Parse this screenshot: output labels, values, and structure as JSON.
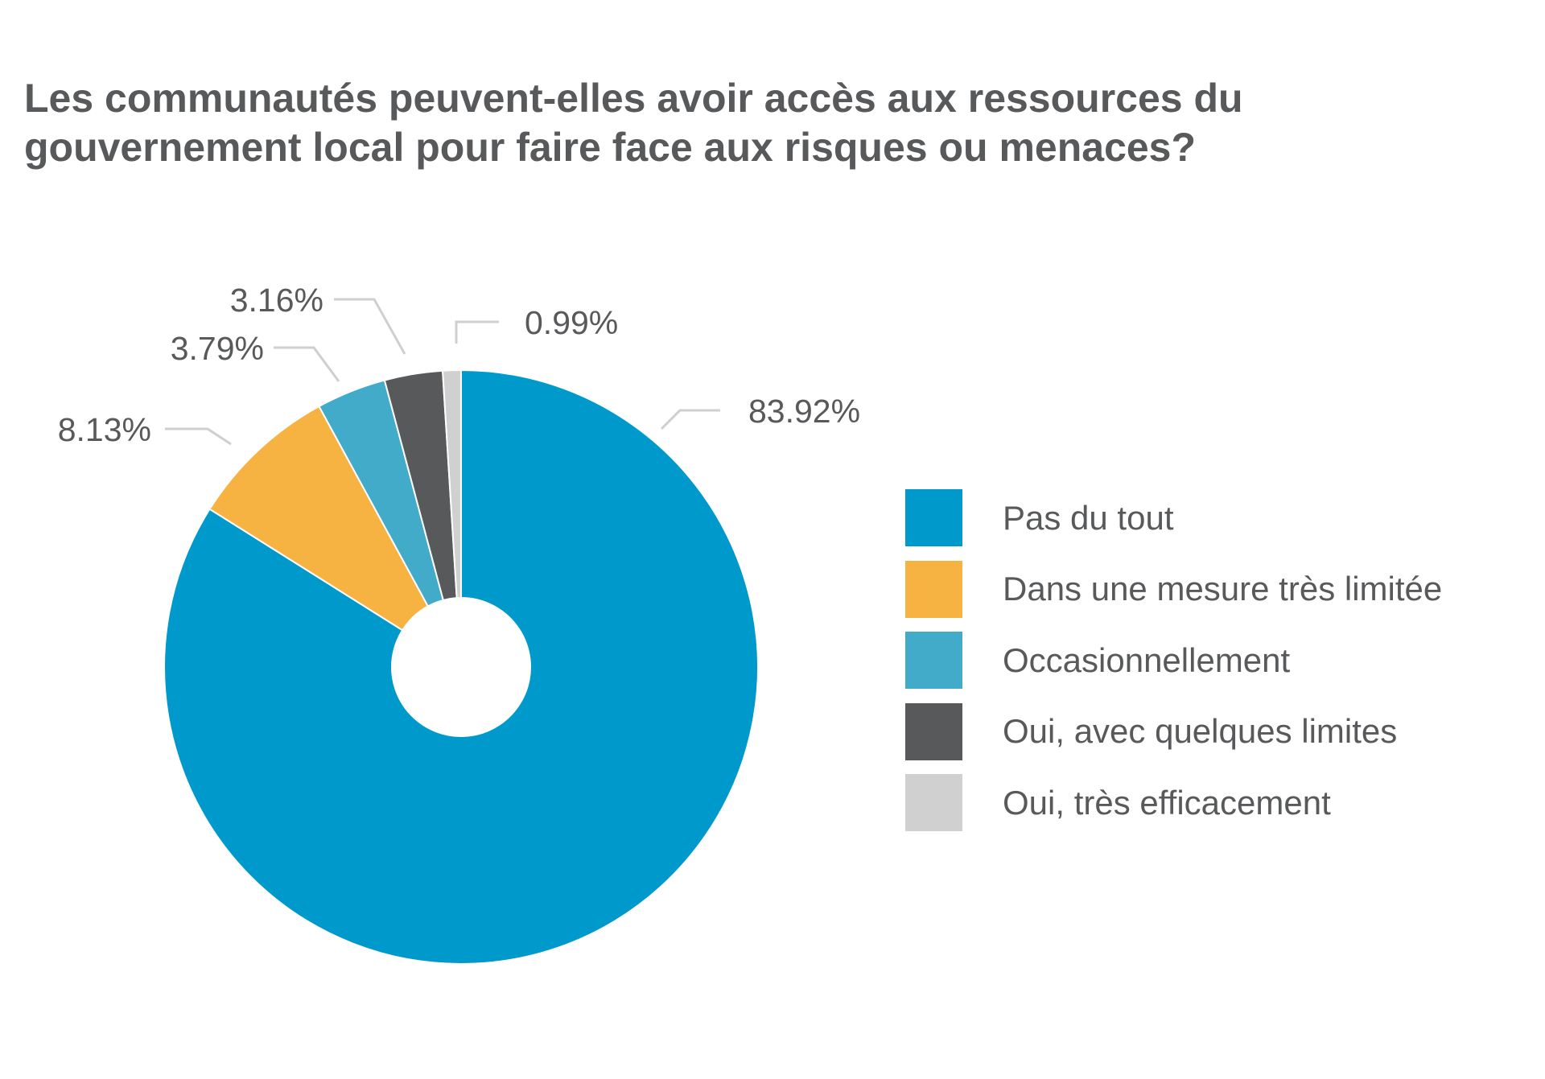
{
  "chart_data": {
    "type": "pie",
    "variant": "donut",
    "title_lines": [
      "Les communautés peuvent-elles avoir accès aux ressources du",
      "gouvernement local pour faire face aux risques ou menaces?"
    ],
    "categories": [
      "Pas du tout",
      "Dans une mesure très limitée",
      "Occasionnellement",
      "Oui, avec quelques limites",
      "Oui, très efficacement"
    ],
    "values": [
      83.92,
      8.13,
      3.79,
      3.16,
      0.99
    ],
    "value_labels": [
      "83.92%",
      "8.13%",
      "3.79%",
      "3.16%",
      "0.99%"
    ],
    "colors": [
      "#0099cc",
      "#f6b341",
      "#41abc9",
      "#58595b",
      "#d0d0d0"
    ],
    "start": "top",
    "direction": "clockwise",
    "legend_position": "right"
  }
}
